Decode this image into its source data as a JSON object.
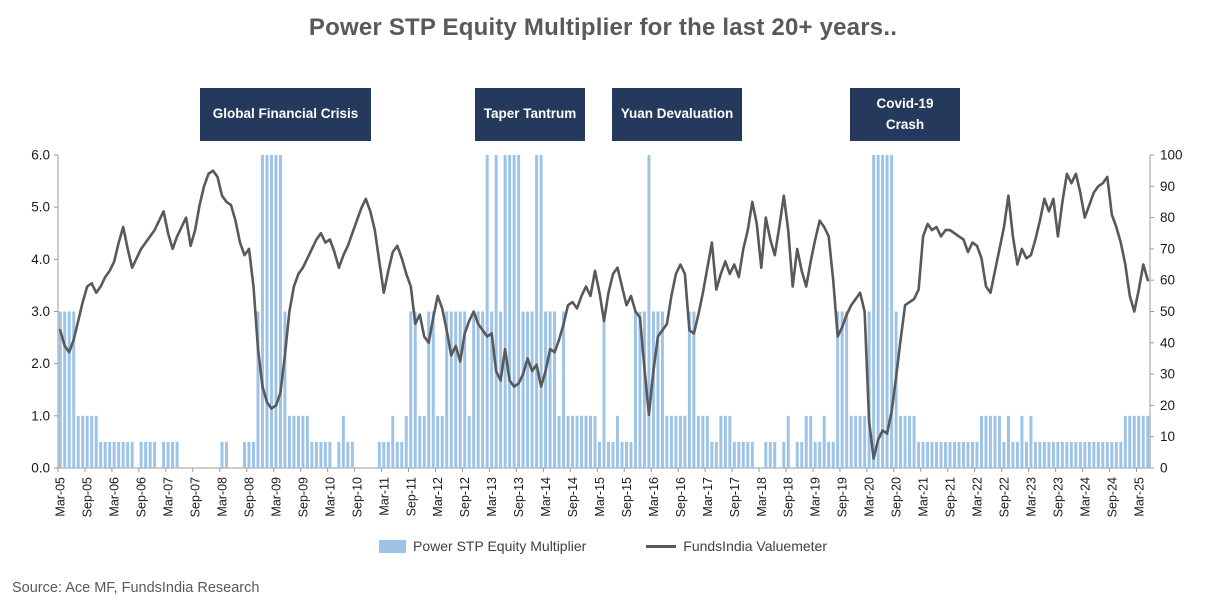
{
  "title": "Power STP Equity Multiplier for the last 20+ years..",
  "source": "Source: Ace MF, FundsIndia Research",
  "legend": {
    "bar_label": "Power STP Equity Multiplier",
    "line_label": "FundsIndia Valuemeter"
  },
  "annotations": [
    {
      "id": "gfc",
      "label": "Global Financial Crisis"
    },
    {
      "id": "taper",
      "label": "Taper Tantrum"
    },
    {
      "id": "yuan",
      "label": "Yuan Devaluation"
    },
    {
      "id": "covid",
      "label": "Covid-19 Crash"
    }
  ],
  "colors": {
    "bar": "#9DC3E6",
    "line": "#595959",
    "annotation_bg": "#24395B",
    "annotation_text": "#FFFFFF",
    "title_text": "#595959",
    "axis_text": "#1A1A1A",
    "axis_line": "#9B9B9B"
  },
  "chart_data": {
    "type": "bar+line",
    "title": "Power STP Equity Multiplier for the last 20+ years..",
    "x_start": "Mar-05",
    "x_frequency": "monthly",
    "x_ticks": [
      "Mar-05",
      "Sep-05",
      "Mar-06",
      "Sep-06",
      "Mar-07",
      "Sep-07",
      "Mar-08",
      "Sep-08",
      "Mar-09",
      "Sep-09",
      "Mar-10",
      "Sep-10",
      "Mar-11",
      "Sep-11",
      "Mar-12",
      "Sep-12",
      "Mar-13",
      "Sep-13",
      "Mar-14",
      "Sep-14",
      "Mar-15",
      "Sep-15",
      "Mar-16",
      "Sep-16",
      "Mar-17",
      "Sep-17",
      "Mar-18",
      "Sep-18",
      "Mar-19",
      "Sep-19",
      "Mar-20",
      "Sep-20",
      "Mar-21",
      "Sep-21",
      "Mar-22",
      "Sep-22",
      "Mar-23",
      "Sep-23",
      "Mar-24",
      "Sep-24",
      "Mar-25"
    ],
    "x_tick_interval_months": 6,
    "left_axis": {
      "min": 0,
      "max": 6,
      "step": 1,
      "decimals": 1
    },
    "right_axis": {
      "min": 0,
      "max": 100,
      "step": 10,
      "decimals": 0
    },
    "grid": false,
    "legend_position": "bottom",
    "series": [
      {
        "name": "Power STP Equity Multiplier",
        "type": "bar",
        "axis": "left",
        "values": [
          3,
          3,
          3,
          3,
          1,
          1,
          1,
          1,
          1,
          0.5,
          0.5,
          0.5,
          0.5,
          0.5,
          0.5,
          0.5,
          0.5,
          0,
          0.5,
          0.5,
          0.5,
          0.5,
          0,
          0.5,
          0.5,
          0.5,
          0.5,
          0,
          0,
          0,
          0,
          0,
          0,
          0,
          0,
          0,
          0.5,
          0.5,
          0,
          0,
          0,
          0.5,
          0.5,
          0.5,
          3,
          6,
          6,
          6,
          6,
          6,
          3,
          1,
          1,
          1,
          1,
          1,
          0.5,
          0.5,
          0.5,
          0.5,
          0.5,
          0,
          0.5,
          1,
          0.5,
          0.5,
          0,
          0,
          0,
          0,
          0,
          0.5,
          0.5,
          0.5,
          1,
          0.5,
          0.5,
          1,
          3,
          3,
          1,
          1,
          3,
          3,
          1,
          1,
          3,
          3,
          3,
          3,
          3,
          1,
          3,
          3,
          3,
          6,
          3,
          6,
          3,
          6,
          6,
          6,
          6,
          3,
          3,
          3,
          6,
          6,
          3,
          3,
          3,
          1,
          3,
          1,
          1,
          1,
          1,
          1,
          1,
          1,
          0.5,
          3,
          0.5,
          0.5,
          1,
          0.5,
          0.5,
          0.5,
          3,
          3,
          3,
          6,
          3,
          3,
          3,
          1,
          1,
          1,
          1,
          1,
          3,
          3,
          1,
          1,
          1,
          0.5,
          0.5,
          1,
          1,
          1,
          0.5,
          0.5,
          0.5,
          0.5,
          0.5,
          0,
          0,
          0.5,
          0.5,
          0.5,
          0,
          0.5,
          1,
          0,
          0.5,
          0.5,
          1,
          1,
          0.5,
          0.5,
          1,
          0.5,
          0.5,
          3,
          3,
          3,
          1,
          1,
          1,
          1,
          3,
          6,
          6,
          6,
          6,
          6,
          3,
          1,
          1,
          1,
          1,
          0.5,
          0.5,
          0.5,
          0.5,
          0.5,
          0.5,
          0.5,
          0.5,
          0.5,
          0.5,
          0.5,
          0.5,
          0.5,
          0.5,
          1,
          1,
          1,
          1,
          1,
          0.5,
          1,
          0.5,
          0.5,
          1,
          0.5,
          1,
          0.5,
          0.5,
          0.5,
          0.5,
          0.5,
          0.5,
          0.5,
          0.5,
          0.5,
          0.5,
          0.5,
          0.5,
          0.5,
          0.5,
          0.5,
          0.5,
          0.5,
          0.5,
          0.5,
          0.5,
          1,
          1,
          1,
          1,
          1,
          1
        ]
      },
      {
        "name": "FundsIndia Valuemeter",
        "type": "line",
        "axis": "right",
        "values": [
          44,
          39,
          37,
          41,
          47,
          53,
          58,
          59,
          56,
          58,
          61,
          63,
          66,
          72,
          77,
          70,
          64,
          67,
          70,
          72,
          74,
          76,
          79,
          82,
          75,
          70,
          74,
          77,
          80,
          71,
          76,
          84,
          90,
          94,
          95,
          93,
          87,
          85,
          84,
          79,
          72,
          68,
          70,
          58,
          38,
          26,
          21,
          19,
          20,
          24,
          36,
          50,
          58,
          62,
          64,
          67,
          70,
          73,
          75,
          72,
          73,
          69,
          64,
          68,
          71,
          75,
          79,
          83,
          86,
          82,
          76,
          66,
          56,
          63,
          69,
          71,
          67,
          62,
          58,
          46,
          49,
          42,
          40,
          48,
          55,
          51,
          44,
          36,
          39,
          34,
          43,
          47,
          50,
          46,
          44,
          42,
          43,
          31,
          28,
          38,
          28,
          26,
          27,
          30,
          35,
          31,
          33,
          26,
          31,
          38,
          37,
          41,
          46,
          52,
          53,
          51,
          55,
          58,
          55,
          63,
          56,
          47,
          56,
          62,
          64,
          58,
          52,
          55,
          50,
          48,
          32,
          17,
          31,
          42,
          44,
          46,
          55,
          62,
          65,
          62,
          44,
          43,
          49,
          56,
          64,
          72,
          57,
          62,
          66,
          62,
          65,
          61,
          70,
          76,
          85,
          78,
          64,
          80,
          73,
          68,
          77,
          87,
          76,
          58,
          70,
          63,
          58,
          66,
          73,
          79,
          77,
          74,
          60,
          42,
          45,
          49,
          52,
          54,
          56,
          50,
          15,
          3,
          9,
          12,
          11,
          18,
          29,
          41,
          52,
          53,
          54,
          57,
          74,
          78,
          76,
          77,
          74,
          76,
          76,
          75,
          74,
          73,
          69,
          72,
          71,
          67,
          58,
          56,
          63,
          70,
          77,
          87,
          74,
          65,
          70,
          67,
          68,
          73,
          79,
          86,
          82,
          86,
          74,
          85,
          94,
          91,
          94,
          88,
          80,
          84,
          88,
          90,
          91,
          93,
          81,
          77,
          72,
          65,
          55,
          50,
          57,
          65,
          60
        ]
      }
    ]
  }
}
